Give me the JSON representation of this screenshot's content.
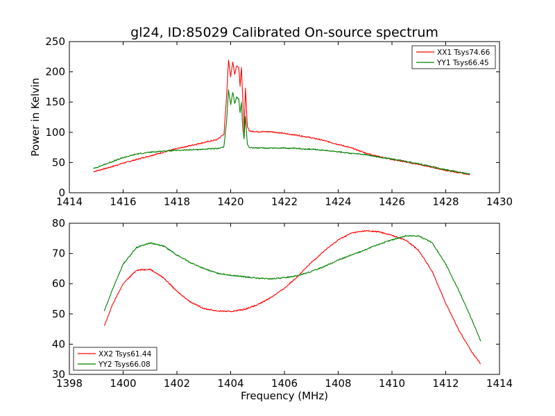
{
  "title": "gl24, ID:85029 Calibrated On-source spectrum",
  "colors": {
    "red": "#ff0000",
    "green": "#008000"
  },
  "chart_data": [
    {
      "type": "line",
      "xlabel": "",
      "ylabel": "Power in Kelvin",
      "xlim": [
        1414,
        1430
      ],
      "ylim": [
        0,
        250
      ],
      "xticks": [
        "1414",
        "1416",
        "1418",
        "1420",
        "1422",
        "1424",
        "1426",
        "1428",
        "1430"
      ],
      "yticks": [
        "0",
        "50",
        "100",
        "150",
        "200",
        "250"
      ],
      "legend_position": "top-right",
      "series": [
        {
          "name": "XX1 Tsys74.66",
          "color": "#ff0000",
          "x": [
            1414.9,
            1415.5,
            1416,
            1416.5,
            1417,
            1417.5,
            1418,
            1418.5,
            1419,
            1419.5,
            1419.75,
            1419.85,
            1419.92,
            1420.0,
            1420.08,
            1420.15,
            1420.22,
            1420.3,
            1420.35,
            1420.4,
            1420.45,
            1420.5,
            1420.55,
            1420.62,
            1420.7,
            1421,
            1421.5,
            1422,
            1422.5,
            1423,
            1423.5,
            1424,
            1424.5,
            1425,
            1425.5,
            1426,
            1426.5,
            1427,
            1427.5,
            1428,
            1428.5,
            1428.9
          ],
          "y": [
            35,
            42,
            49,
            55,
            61,
            67,
            73,
            78,
            83,
            88,
            97,
            160,
            220,
            192,
            217,
            196,
            210,
            208,
            177,
            208,
            155,
            100,
            172,
            110,
            102,
            101,
            101,
            98,
            95,
            91,
            86,
            80,
            74,
            66,
            60,
            55,
            51,
            47,
            42,
            37,
            33,
            30
          ]
        },
        {
          "name": "YY1 Tsys66.45",
          "color": "#008000",
          "x": [
            1414.9,
            1415.5,
            1416,
            1416.5,
            1417,
            1417.5,
            1418,
            1418.5,
            1419,
            1419.5,
            1419.75,
            1419.85,
            1419.92,
            1420.0,
            1420.08,
            1420.15,
            1420.22,
            1420.3,
            1420.35,
            1420.4,
            1420.45,
            1420.5,
            1420.55,
            1420.62,
            1420.7,
            1421,
            1421.5,
            1422,
            1422.5,
            1423,
            1423.5,
            1424,
            1424.5,
            1425,
            1425.5,
            1426,
            1426.5,
            1427,
            1427.5,
            1428,
            1428.5,
            1428.9
          ],
          "y": [
            40,
            50,
            58,
            64,
            67,
            69,
            70,
            71,
            72,
            73,
            76,
            120,
            170,
            145,
            166,
            148,
            158,
            155,
            132,
            150,
            105,
            90,
            127,
            80,
            75,
            74,
            74,
            74,
            73,
            72,
            70,
            68,
            65,
            63,
            59,
            56,
            52,
            48,
            43,
            38,
            34,
            31
          ]
        }
      ]
    },
    {
      "type": "line",
      "xlabel": "Frequency (MHz)",
      "ylabel": "",
      "xlim": [
        1398,
        1414
      ],
      "ylim": [
        30,
        80
      ],
      "xticks": [
        "1398",
        "1400",
        "1402",
        "1404",
        "1406",
        "1408",
        "1410",
        "1412",
        "1414"
      ],
      "yticks": [
        "30",
        "40",
        "50",
        "60",
        "70",
        "80"
      ],
      "legend_position": "bottom-left",
      "series": [
        {
          "name": "XX2 Tsys61.44",
          "color": "#ff0000",
          "x": [
            1399.3,
            1399.6,
            1400,
            1400.5,
            1401,
            1401.5,
            1402,
            1402.5,
            1403,
            1403.5,
            1404,
            1404.5,
            1405,
            1405.5,
            1406,
            1406.5,
            1407,
            1407.5,
            1408,
            1408.5,
            1409,
            1409.5,
            1410,
            1410.5,
            1411,
            1411.5,
            1412,
            1412.5,
            1413,
            1413.3
          ],
          "y": [
            46,
            53,
            60,
            64.5,
            64.8,
            62,
            57.5,
            54,
            51.8,
            51,
            50.8,
            51.5,
            53,
            55.5,
            58.5,
            62.5,
            67,
            71,
            74.5,
            76.8,
            77.5,
            77.2,
            76,
            74.5,
            71,
            64,
            53.5,
            44.5,
            37,
            33.5
          ]
        },
        {
          "name": "YY2 Tsys66.08",
          "color": "#008000",
          "x": [
            1399.3,
            1399.6,
            1400,
            1400.5,
            1401,
            1401.5,
            1402,
            1402.5,
            1403,
            1403.5,
            1404,
            1404.5,
            1405,
            1405.5,
            1406,
            1406.5,
            1407,
            1407.5,
            1408,
            1408.5,
            1409,
            1409.5,
            1410,
            1410.5,
            1411,
            1411.5,
            1412,
            1412.5,
            1413,
            1413.3
          ],
          "y": [
            51,
            58,
            66.5,
            72,
            73.5,
            72.5,
            69.5,
            67,
            65,
            63.5,
            62.8,
            62.3,
            61.8,
            61.6,
            62,
            62.7,
            64,
            65.8,
            67.8,
            69.5,
            71.2,
            73,
            74.5,
            75.8,
            75.8,
            73.5,
            66.5,
            57.5,
            47.5,
            41
          ]
        }
      ]
    }
  ]
}
